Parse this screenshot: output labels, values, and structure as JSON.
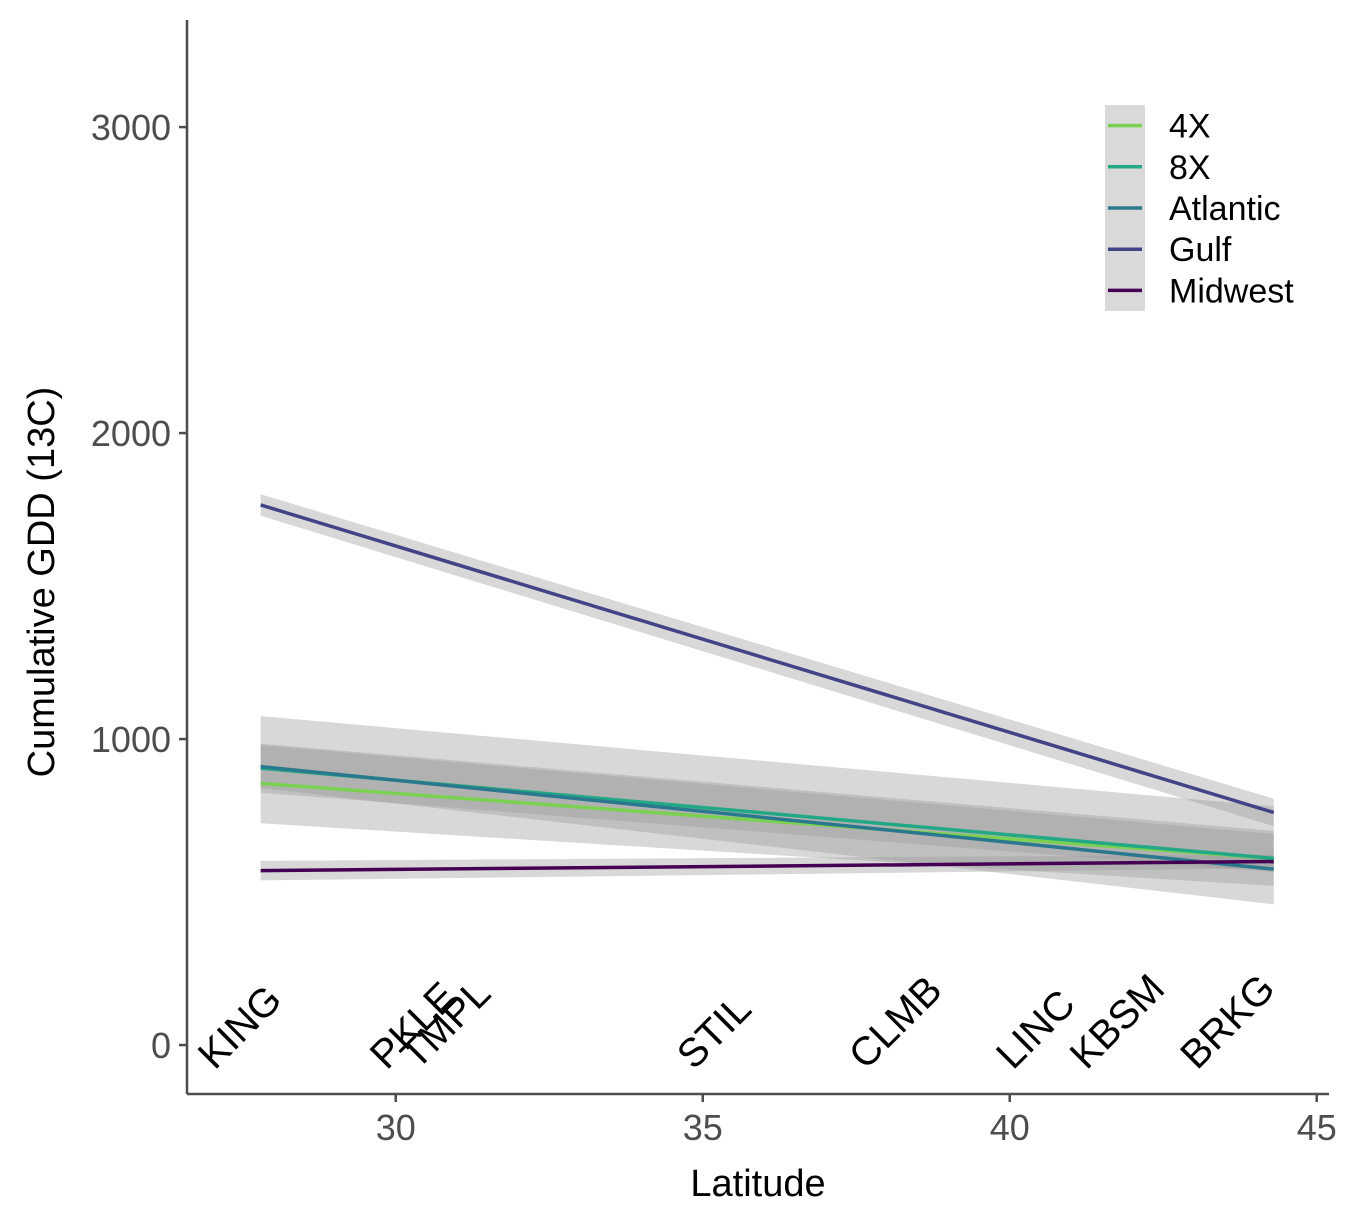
{
  "chart_data": {
    "type": "line",
    "title": "",
    "xlabel": "Latitude",
    "ylabel": "Cumulative GDD (13C)",
    "xlim": [
      26.6,
      45.2
    ],
    "ylim": [
      -160,
      3350
    ],
    "xticks": [
      30,
      35,
      40,
      45
    ],
    "xtick_labels": [
      "30",
      "35",
      "40",
      "45"
    ],
    "yticks": [
      0,
      1000,
      2000,
      3000
    ],
    "ytick_labels": [
      "0",
      "1000",
      "2000",
      "3000"
    ],
    "grid": false,
    "legend": {
      "position": "top-right",
      "key_background": "#d9d9d9"
    },
    "series": [
      {
        "name": "4X",
        "color": "#7ad151",
        "x": [
          27.8,
          44.3
        ],
        "y": [
          855,
          610
        ],
        "band_lower": [
          725,
          520
        ],
        "band_upper": [
          985,
          700
        ]
      },
      {
        "name": "8X",
        "color": "#22a884",
        "x": [
          27.8,
          44.3
        ],
        "y": [
          905,
          610
        ],
        "band_lower": [
          825,
          565
        ],
        "band_upper": [
          1075,
          780
        ]
      },
      {
        "name": "Atlantic",
        "color": "#2a788e",
        "x": [
          27.8,
          44.3
        ],
        "y": [
          910,
          575
        ],
        "band_lower": [
          840,
          460
        ],
        "band_upper": [
          980,
          690
        ]
      },
      {
        "name": "Gulf",
        "color": "#414487",
        "x": [
          27.8,
          44.3
        ],
        "y": [
          1765,
          760
        ],
        "band_lower": [
          1730,
          715
        ],
        "band_upper": [
          1800,
          805
        ]
      },
      {
        "name": "Midwest",
        "color": "#440154",
        "x": [
          27.8,
          44.3
        ],
        "y": [
          570,
          600
        ],
        "band_lower": [
          538,
          578
        ],
        "band_upper": [
          602,
          622
        ]
      }
    ],
    "annotations": [
      {
        "text": "KING",
        "x": 27.8,
        "y": 0
      },
      {
        "text": "PKLE",
        "x": 30.6,
        "y": 0
      },
      {
        "text": "TMPL",
        "x": 31.1,
        "y": 0
      },
      {
        "text": "STIL",
        "x": 35.6,
        "y": 0
      },
      {
        "text": "CLMB",
        "x": 38.4,
        "y": 0
      },
      {
        "text": "LINC",
        "x": 40.8,
        "y": 0
      },
      {
        "text": "KBSM",
        "x": 42.0,
        "y": 0
      },
      {
        "text": "BRKG",
        "x": 43.8,
        "y": 0
      }
    ]
  }
}
